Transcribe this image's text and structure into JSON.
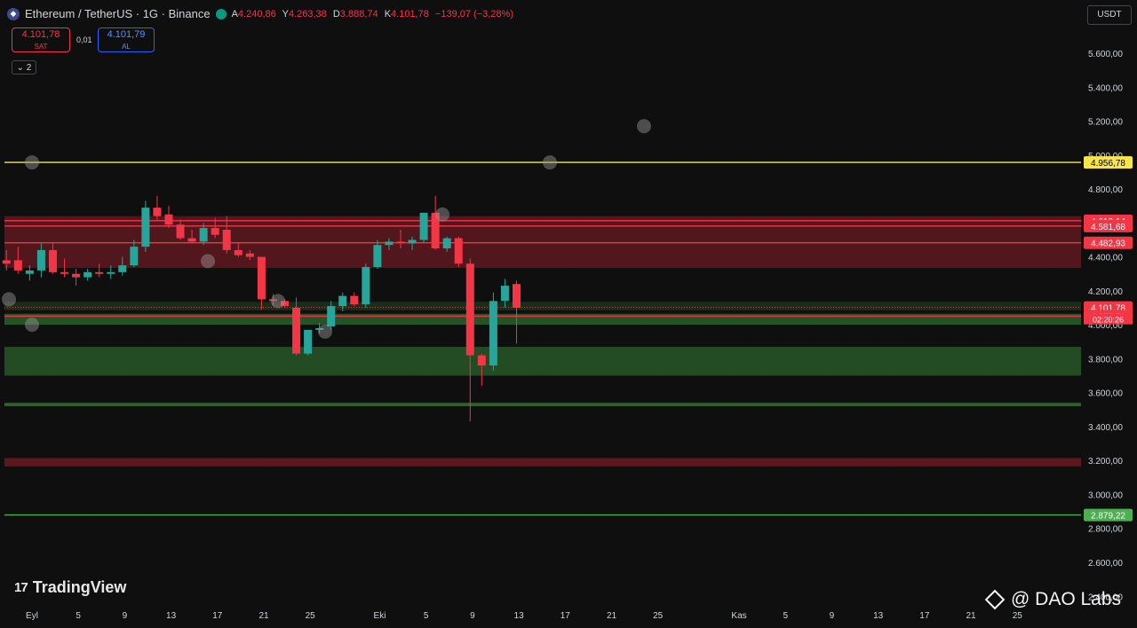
{
  "header": {
    "symbol": "Ethereum / TetherUS · 1G · Binance",
    "open_label": "A",
    "open": "4.240,86",
    "high_label": "Y",
    "high": "4.263,38",
    "low_label": "D",
    "low": "3.888,74",
    "close_label": "K",
    "close": "4.101,78",
    "change": "−139,07 (−3,28%)"
  },
  "trade": {
    "sell_price": "4.101,78",
    "sell_label": "SAT",
    "spread": "0,01",
    "buy_price": "4.101,79",
    "buy_label": "AL"
  },
  "indicators_toggle": "2",
  "currency": "USDT",
  "price_axis": {
    "ticks": [
      "5.600,00",
      "5.400,00",
      "5.200,00",
      "5.000,00",
      "4.800,00",
      "4.600,00",
      "4.400,00",
      "4.200,00",
      "4.000,00",
      "3.800,00",
      "3.600,00",
      "3.400,00",
      "3.200,00",
      "3.000,00",
      "2.800,00",
      "2.600,00",
      "2.400,00"
    ],
    "tick_values": [
      5600,
      5400,
      5200,
      5000,
      4800,
      4600,
      4400,
      4200,
      4000,
      3800,
      3600,
      3400,
      3200,
      3000,
      2800,
      2600,
      2400
    ]
  },
  "price_labels": [
    {
      "text": "4.956,78",
      "value": 4956.78,
      "color": "#f7e64a",
      "text_color": "#000000"
    },
    {
      "text": "4.613,14",
      "value": 4613.14,
      "color": "#f23645",
      "text_color": "#ffffff"
    },
    {
      "text": "4.581,68",
      "value": 4581.68,
      "color": "#f23645",
      "text_color": "#ffffff"
    },
    {
      "text": "4.482,93",
      "value": 4482.93,
      "color": "#f23645",
      "text_color": "#ffffff"
    },
    {
      "text": "4.101,78",
      "value": 4101.78,
      "color": "#f23645",
      "text_color": "#ffffff"
    },
    {
      "text": "4.050,79",
      "value": 4050.79,
      "color": "#f23645",
      "text_color": "#ffffff"
    },
    {
      "text": "2.879,22",
      "value": 2879.22,
      "color": "#4caf50",
      "text_color": "#ffffff"
    }
  ],
  "countdown": "02:20:26",
  "time_axis": [
    {
      "label": "Eyl",
      "day": 0
    },
    {
      "label": "5",
      "day": 4
    },
    {
      "label": "9",
      "day": 8
    },
    {
      "label": "13",
      "day": 12
    },
    {
      "label": "17",
      "day": 16
    },
    {
      "label": "21",
      "day": 20
    },
    {
      "label": "25",
      "day": 24
    },
    {
      "label": "Eki",
      "day": 30
    },
    {
      "label": "5",
      "day": 34
    },
    {
      "label": "9",
      "day": 38
    },
    {
      "label": "13",
      "day": 42
    },
    {
      "label": "17",
      "day": 46
    },
    {
      "label": "21",
      "day": 50
    },
    {
      "label": "25",
      "day": 54
    },
    {
      "label": "Kas",
      "day": 61
    },
    {
      "label": "5",
      "day": 65
    },
    {
      "label": "9",
      "day": 69
    },
    {
      "label": "13",
      "day": 73
    },
    {
      "label": "17",
      "day": 77
    },
    {
      "label": "21",
      "day": 81
    },
    {
      "label": "25",
      "day": 85
    }
  ],
  "zones": [
    {
      "name": "resistance-zone",
      "from": 4335,
      "to": 4640,
      "color": "#8b1f2a",
      "opacity": 0.55
    },
    {
      "name": "support-zone-upper",
      "from": 4000,
      "to": 4065,
      "color": "#2e6b2f",
      "opacity": 0.75
    },
    {
      "name": "support-zone-lower",
      "from": 3700,
      "to": 3870,
      "color": "#2e6b2f",
      "opacity": 0.65
    },
    {
      "name": "support-band-thin",
      "from": 4085,
      "to": 4135,
      "color": "#2e6b2f",
      "opacity": 0.35
    },
    {
      "name": "support-line-3530",
      "from": 3520,
      "to": 3540,
      "color": "#2e6b2f",
      "opacity": 0.9
    },
    {
      "name": "deep-zone-3180",
      "from": 3165,
      "to": 3215,
      "color": "#8b1f2a",
      "opacity": 0.6
    }
  ],
  "lines": [
    {
      "name": "level-line-4956",
      "value": 4956.78,
      "color": "#f7e64a"
    },
    {
      "name": "level-line-4613",
      "value": 4613.14,
      "color": "#f23645"
    },
    {
      "name": "level-line-4581",
      "value": 4581.68,
      "color": "#f23645"
    },
    {
      "name": "level-line-4482",
      "value": 4482.93,
      "color": "#f23645"
    },
    {
      "name": "level-line-4050",
      "value": 4050.79,
      "color": "#f23645"
    },
    {
      "name": "level-line-2879",
      "value": 2879.22,
      "color": "#4caf50"
    }
  ],
  "colors": {
    "up": "#26a69a",
    "down": "#f23645"
  },
  "candles": [
    [
      4350,
      4430,
      4230,
      4380
    ],
    [
      4380,
      4440,
      4320,
      4360
    ],
    [
      4380,
      4460,
      4300,
      4320
    ],
    [
      4300,
      4350,
      4260,
      4320
    ],
    [
      4320,
      4480,
      4280,
      4440
    ],
    [
      4440,
      4480,
      4300,
      4310
    ],
    [
      4310,
      4390,
      4280,
      4300
    ],
    [
      4300,
      4330,
      4230,
      4280
    ],
    [
      4280,
      4330,
      4260,
      4310
    ],
    [
      4310,
      4360,
      4280,
      4300
    ],
    [
      4300,
      4350,
      4270,
      4310
    ],
    [
      4310,
      4400,
      4290,
      4350
    ],
    [
      4350,
      4500,
      4340,
      4460
    ],
    [
      4460,
      4730,
      4430,
      4690
    ],
    [
      4690,
      4760,
      4610,
      4640
    ],
    [
      4650,
      4700,
      4570,
      4590
    ],
    [
      4590,
      4620,
      4500,
      4510
    ],
    [
      4510,
      4560,
      4480,
      4490
    ],
    [
      4490,
      4600,
      4470,
      4570
    ],
    [
      4570,
      4630,
      4510,
      4530
    ],
    [
      4560,
      4640,
      4420,
      4440
    ],
    [
      4440,
      4480,
      4400,
      4410
    ],
    [
      4420,
      4440,
      4380,
      4400
    ],
    [
      4400,
      4400,
      4090,
      4150
    ],
    [
      4150,
      4180,
      4110,
      4140
    ],
    [
      4140,
      4150,
      4100,
      4110
    ],
    [
      4100,
      4160,
      3820,
      3830
    ],
    [
      3830,
      3970,
      3820,
      3970
    ],
    [
      3970,
      4010,
      3950,
      3980
    ],
    [
      3990,
      4140,
      3970,
      4110
    ],
    [
      4110,
      4190,
      4080,
      4170
    ],
    [
      4170,
      4190,
      4110,
      4120
    ],
    [
      4120,
      4360,
      4100,
      4340
    ],
    [
      4340,
      4500,
      4330,
      4470
    ],
    [
      4470,
      4510,
      4440,
      4490
    ],
    [
      4490,
      4560,
      4450,
      4480
    ],
    [
      4480,
      4520,
      4440,
      4500
    ],
    [
      4500,
      4660,
      4480,
      4660
    ],
    [
      4660,
      4760,
      4440,
      4450
    ],
    [
      4450,
      4520,
      4430,
      4510
    ],
    [
      4510,
      4520,
      4340,
      4360
    ],
    [
      4360,
      4390,
      3430,
      3820
    ],
    [
      3820,
      3830,
      3640,
      3760
    ],
    [
      3760,
      4190,
      3730,
      4140
    ],
    [
      4140,
      4270,
      4100,
      4230
    ],
    [
      4240,
      4260,
      3890,
      4100
    ]
  ]
}
